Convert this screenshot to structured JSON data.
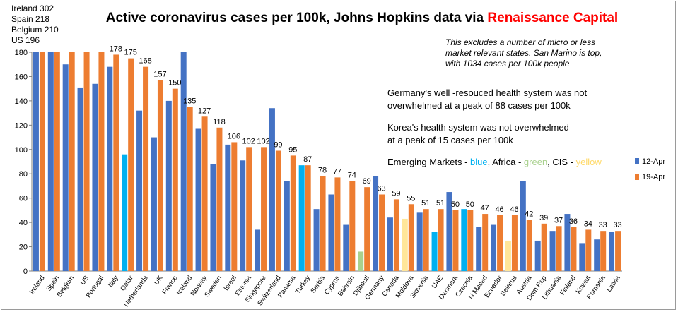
{
  "chart_data": {
    "type": "bar",
    "title_prefix": "Active coronavirus cases per 100k, Johns Hopkins data via ",
    "title_brand": "Renaissance Capital",
    "ylim": [
      0,
      180
    ],
    "yticks": [
      0,
      20,
      40,
      60,
      80,
      100,
      120,
      140,
      160,
      180
    ],
    "categories": [
      "Ireland",
      "Spain",
      "Belgium",
      "US",
      "Portugal",
      "Italy",
      "Qatar",
      "Netherlands",
      "UK",
      "France",
      "Iceland",
      "Norway",
      "Sweden",
      "Israel",
      "Estonia",
      "Singapore",
      "Switzerland",
      "Panama",
      "Turkey",
      "Serbia",
      "Cyprus",
      "Bahrain",
      "Djibouti",
      "Germany",
      "Canada",
      "Moldova",
      "Slovenia",
      "UAE",
      "Denmark",
      "Czechia",
      "N Maced",
      "Ecuador",
      "Belarus",
      "Austria",
      "Dom Rep",
      "Lithuania",
      "Finland",
      "Kuwait",
      "Romania",
      "Latvia"
    ],
    "series": [
      {
        "name": "12-Apr",
        "values": [
          180,
          180,
          170,
          151,
          154,
          168,
          96,
          132,
          110,
          140,
          180,
          117,
          88,
          104,
          91,
          34,
          134,
          74,
          87,
          51,
          63,
          38,
          16,
          78,
          44,
          43,
          48,
          32,
          65,
          51,
          36,
          38,
          25,
          74,
          25,
          33,
          47,
          23,
          26,
          32
        ]
      },
      {
        "name": "19-Apr",
        "values": [
          180,
          180,
          180,
          180,
          180,
          178,
          175,
          168,
          157,
          150,
          135,
          127,
          118,
          106,
          102,
          102,
          99,
          95,
          87,
          78,
          77,
          74,
          69,
          63,
          59,
          55,
          51,
          51,
          50,
          50,
          47,
          46,
          46,
          42,
          39,
          37,
          36,
          34,
          33,
          33
        ]
      }
    ],
    "highlight_12apr": {
      "Qatar": "blue",
      "Turkey": "blue",
      "UAE": "blue",
      "Czechia": "blue",
      "Djibouti": "green",
      "Moldova": "yellow",
      "Belarus": "yellow"
    },
    "bar_labels_19apr": [
      "",
      "",
      "",
      "",
      "",
      "178",
      "175",
      "168",
      "157",
      "150",
      "135",
      "127",
      "118",
      "106",
      "102",
      "102",
      "99",
      "95",
      "87",
      "78",
      "77",
      "74",
      "69",
      "63",
      "59",
      "55",
      "51",
      "51",
      "50",
      "50",
      "47",
      "46",
      "46",
      "42",
      "39",
      "37",
      "36",
      "34",
      "33",
      "33"
    ],
    "offscale": [
      "Ireland 302",
      "Spain 218",
      "Belgium 210",
      "US 196"
    ],
    "annotations": {
      "italic_note": [
        "This excludes a number of micro or less",
        "market relevant states. San Marino is top,",
        "with 1034 cases per 100k people"
      ],
      "germany": [
        "Germany's  well -resouced health system was not",
        "overwhelmed  at a peak of 88 cases per 100k"
      ],
      "korea": [
        "Korea's health system was not overwhelmed",
        "at a peak of 15 cases per 100k"
      ],
      "em_parts": [
        {
          "text": "Emerging Markets - ",
          "color": "#000000"
        },
        {
          "text": "blue",
          "color": "#00B0F0"
        },
        {
          "text": ", Africa - ",
          "color": "#000000"
        },
        {
          "text": "green",
          "color": "#A9D18E"
        },
        {
          "text": ", CIS - ",
          "color": "#000000"
        },
        {
          "text": "yellow",
          "color": "#FFD966"
        }
      ]
    },
    "legend_position": "right",
    "grid": false
  },
  "colors": {
    "s1": "#4472C4",
    "s2": "#ED7D31",
    "blue": "#00B0F0",
    "green": "#A9D18E",
    "yellow": "#FFE699",
    "brand": "#FF0000"
  }
}
